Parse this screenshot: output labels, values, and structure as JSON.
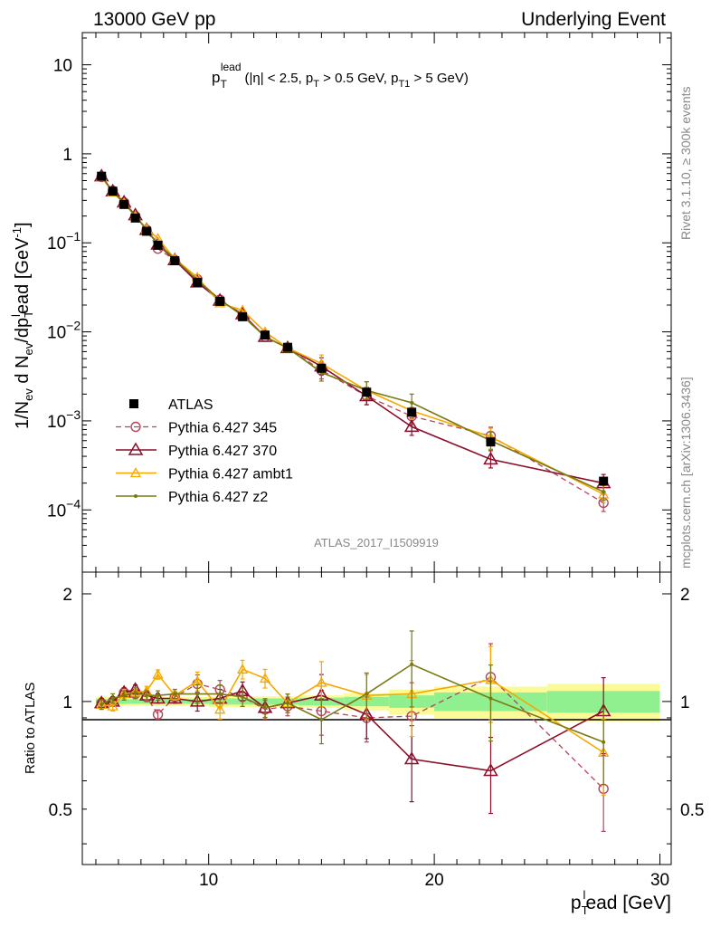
{
  "header": {
    "left": "13000 GeV pp",
    "right": "Underlying Event"
  },
  "side": {
    "rivet": "Rivet 3.1.10, ≥ 300k events",
    "mcplots": "mcplots.cern.ch [arXiv:1306.3436]"
  },
  "analysis_id": "ATLAS_2017_I1509919",
  "colors": {
    "atlas": "#000000",
    "p345": "#b4455a",
    "p370": "#8b0e2a",
    "ambt1": "#f5a800",
    "z2": "#7a7a12",
    "band_inner": "#90f090",
    "band_outer": "#fafa96",
    "meta_text": "#888888"
  },
  "chart_data": [
    {
      "type": "line",
      "title_parts": {
        "p": "p",
        "sub": "T",
        "sup": "lead",
        "cuts": "(|η| < 2.5, p",
        "cut1_sub": "T",
        "cut2": " > 0.5 GeV, p",
        "cut2_sub": "T1",
        "cut3": " > 5 GeV)"
      },
      "ylabel": {
        "a": "1/N",
        "a_sub": "ev",
        "b": " d N",
        "b_sub": "ev",
        "c": "/dp",
        "c_sub": "T",
        "c_sup": "l",
        "d": "ead [GeV",
        "d_sup": "-1",
        "e": "]"
      },
      "xlim": [
        4.4,
        30.5
      ],
      "ylim": [
        2e-05,
        23
      ],
      "yscale": "log",
      "y_ticks": [
        {
          "value": 10,
          "mant": "10",
          "exp": ""
        },
        {
          "value": 1,
          "mant": "1",
          "exp": ""
        },
        {
          "value": 0.1,
          "mant": "10",
          "exp": "−1"
        },
        {
          "value": 0.01,
          "mant": "10",
          "exp": "−2"
        },
        {
          "value": 0.001,
          "mant": "10",
          "exp": "−3"
        },
        {
          "value": 0.0001,
          "mant": "10",
          "exp": "−4"
        }
      ],
      "legend": [
        "ATLAS",
        "Pythia 6.427 345",
        "Pythia 6.427 370",
        "Pythia 6.427 ambt1",
        "Pythia 6.427 z2"
      ],
      "x": [
        5.25,
        5.75,
        6.25,
        6.75,
        7.25,
        7.75,
        8.5,
        9.5,
        10.5,
        11.5,
        12.5,
        13.5,
        15,
        17,
        19,
        22.5,
        27.5
      ],
      "series": [
        {
          "name": "ATLAS",
          "values": [
            0.56,
            0.38,
            0.27,
            0.19,
            0.135,
            0.094,
            0.063,
            0.036,
            0.022,
            0.0148,
            0.0092,
            0.0067,
            0.0039,
            0.0021,
            0.00125,
            0.00058,
            0.00021
          ]
        },
        {
          "name": "Pythia 6.427 345",
          "values": [
            0.55,
            0.385,
            0.285,
            0.2,
            0.14,
            0.086,
            0.064,
            0.039,
            0.023,
            0.0152,
            0.0088,
            0.0066,
            0.0037,
            0.0019,
            0.00113,
            0.00068,
            0.00012
          ]
        },
        {
          "name": "Pythia 6.427 370",
          "values": [
            0.56,
            0.38,
            0.285,
            0.205,
            0.14,
            0.096,
            0.064,
            0.036,
            0.0225,
            0.0158,
            0.0088,
            0.0066,
            0.0041,
            0.0019,
            0.00086,
            0.00037,
            0.0002
          ]
        },
        {
          "name": "Pythia 6.427 ambt1",
          "values": [
            0.55,
            0.37,
            0.28,
            0.2,
            0.145,
            0.112,
            0.066,
            0.041,
            0.021,
            0.0175,
            0.01,
            0.0066,
            0.0044,
            0.0022,
            0.0013,
            0.00066,
            0.00015
          ]
        },
        {
          "name": "Pythia 6.427 z2",
          "values": [
            0.55,
            0.38,
            0.28,
            0.2,
            0.14,
            0.098,
            0.066,
            0.038,
            0.023,
            0.0152,
            0.0088,
            0.0066,
            0.0035,
            0.0022,
            0.0016,
            0.0006,
            0.00016
          ]
        }
      ]
    },
    {
      "type": "line",
      "ylabel": "Ratio to ATLAS",
      "xlabel": {
        "a": "p",
        "sub": "T",
        "sup": "l",
        "b": "ead [GeV]"
      },
      "xlim": [
        4.4,
        30.5
      ],
      "ylim": [
        0.35,
        2.3
      ],
      "x_ticks": [
        10,
        20,
        30
      ],
      "y_ticks": [
        0.5,
        1,
        2
      ],
      "y_ticks_right": [
        0.5,
        1,
        2
      ],
      "x": [
        5.25,
        5.75,
        6.25,
        6.75,
        7.25,
        7.75,
        8.5,
        9.5,
        10.5,
        11.5,
        12.5,
        13.5,
        15,
        17,
        19,
        22.5,
        27.5
      ],
      "bands": {
        "x_edges": [
          5.0,
          5.5,
          6.0,
          6.5,
          7.0,
          7.5,
          8.0,
          9.0,
          10.0,
          11.0,
          12.0,
          13.0,
          14.0,
          16.0,
          18.0,
          20.0,
          25.0,
          30.0
        ],
        "inner": [
          0.015,
          0.015,
          0.015,
          0.015,
          0.015,
          0.015,
          0.015,
          0.015,
          0.02,
          0.02,
          0.02,
          0.02,
          0.025,
          0.03,
          0.04,
          0.06,
          0.07
        ],
        "outer": [
          0.03,
          0.03,
          0.03,
          0.03,
          0.03,
          0.03,
          0.03,
          0.03,
          0.035,
          0.035,
          0.035,
          0.035,
          0.04,
          0.055,
          0.08,
          0.1,
          0.12
        ]
      },
      "series": [
        {
          "name": "Pythia 6.427 345",
          "values": [
            0.99,
            1.0,
            1.06,
            1.05,
            1.03,
            0.92,
            1.03,
            1.12,
            1.08,
            1.03,
            0.95,
            0.97,
            0.94,
            0.9,
            0.91,
            1.17,
            0.57
          ]
        },
        {
          "name": "Pythia 6.427 370",
          "values": [
            0.99,
            1.0,
            1.06,
            1.08,
            1.04,
            1.02,
            1.02,
            1.0,
            1.02,
            1.07,
            0.96,
            0.99,
            1.04,
            0.92,
            0.69,
            0.64,
            0.94
          ]
        },
        {
          "name": "Pythia 6.427 ambt1",
          "values": [
            0.98,
            0.97,
            1.05,
            1.06,
            1.07,
            1.19,
            1.04,
            1.14,
            0.95,
            1.23,
            1.16,
            0.99,
            1.13,
            1.04,
            1.05,
            1.15,
            0.72
          ]
        },
        {
          "name": "Pythia 6.427 z2",
          "values": [
            0.98,
            1.02,
            1.04,
            1.06,
            1.04,
            1.04,
            1.05,
            1.05,
            1.05,
            1.03,
            0.96,
            0.99,
            0.89,
            1.05,
            1.27,
            1.02,
            0.77
          ]
        }
      ]
    }
  ]
}
